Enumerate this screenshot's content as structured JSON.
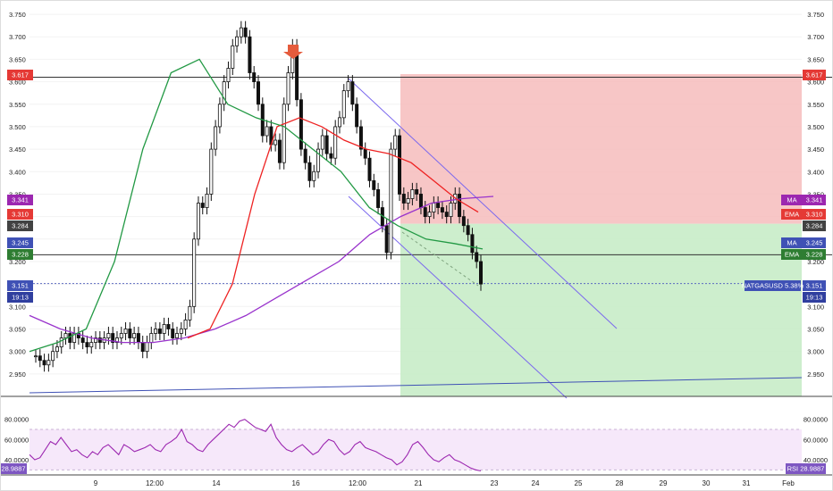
{
  "chart_data": [
    {
      "type": "candlestick",
      "symbol_label": "NATGASUSD 5.38%",
      "ylim": [
        2.9,
        3.77
      ],
      "y_ticks": [
        "3.750",
        "3.700",
        "3.650",
        "3.600",
        "3.550",
        "3.500",
        "3.450",
        "3.400",
        "3.350",
        "3.300",
        "3.250",
        "3.200",
        "3.150",
        "3.100",
        "3.050",
        "3.000",
        "2.950"
      ],
      "x_ticks": [
        "9",
        "12:00",
        "14",
        "16",
        "12:00",
        "21",
        "23",
        "24",
        "25",
        "28",
        "29",
        "30",
        "31",
        "Feb"
      ],
      "hlines": {
        "top": 3.61,
        "mid": 3.215
      },
      "risk_box": {
        "entry": 3.284,
        "stop": 3.617,
        "target": 2.9
      },
      "price_series": [
        2.99,
        2.98,
        2.97,
        2.98,
        3.0,
        3.01,
        3.03,
        3.04,
        3.02,
        3.04,
        3.03,
        3.02,
        3.01,
        3.02,
        3.03,
        3.02,
        3.03,
        3.04,
        3.02,
        3.03,
        3.04,
        3.05,
        3.03,
        3.04,
        3.02,
        3.0,
        3.02,
        3.04,
        3.05,
        3.04,
        3.06,
        3.05,
        3.03,
        3.04,
        3.05,
        3.07,
        3.1,
        3.25,
        3.33,
        3.32,
        3.35,
        3.45,
        3.5,
        3.55,
        3.6,
        3.63,
        3.68,
        3.7,
        3.72,
        3.7,
        3.62,
        3.6,
        3.55,
        3.48,
        3.5,
        3.46,
        3.47,
        3.42,
        3.55,
        3.62,
        3.68,
        3.56,
        3.45,
        3.42,
        3.38,
        3.4,
        3.45,
        3.48,
        3.44,
        3.43,
        3.5,
        3.52,
        3.58,
        3.6,
        3.55,
        3.5,
        3.45,
        3.43,
        3.38,
        3.36,
        3.32,
        3.28,
        3.22,
        3.45,
        3.48,
        3.35,
        3.33,
        3.34,
        3.36,
        3.35,
        3.32,
        3.3,
        3.31,
        3.33,
        3.32,
        3.31,
        3.3,
        3.33,
        3.35,
        3.3,
        3.28,
        3.26,
        3.22,
        3.2,
        3.15
      ],
      "ma_series": [
        3.08,
        3.05,
        3.03,
        3.02,
        3.02,
        3.03,
        3.05,
        3.08,
        3.12,
        3.16,
        3.2,
        3.26,
        3.3,
        3.33,
        3.34,
        3.345
      ],
      "ema_series": [
        3.03,
        3.05,
        3.15,
        3.35,
        3.5,
        3.52,
        3.5,
        3.47,
        3.45,
        3.44,
        3.42,
        3.38,
        3.34,
        3.31
      ],
      "ema_fast_series": [
        3.0,
        3.02,
        3.05,
        3.2,
        3.45,
        3.62,
        3.65,
        3.55,
        3.52,
        3.5,
        3.45,
        3.4,
        3.32,
        3.28,
        3.25,
        3.24,
        3.228
      ],
      "labels": {
        "left": [
          "3.617",
          "3.341",
          "3.310",
          "3.284",
          "3.245",
          "3.228",
          "3.151",
          "19:13"
        ],
        "right_price": [
          "3.617",
          "3.341",
          "3.310",
          "3.284",
          "3.245",
          "3.228",
          "3.151",
          "19:13"
        ],
        "right_tags": [
          "MA",
          "EMA",
          "MA",
          "EMA"
        ]
      },
      "colors": {
        "up": "#111111",
        "down": "#111111",
        "ma": "#9933cc",
        "ema": "#ee2222",
        "ema_fast": "#229944",
        "risk": "#f6bcbc",
        "reward": "#c8ecc8",
        "channel": "#7b68ee",
        "current": "#3f51b5"
      }
    },
    {
      "type": "line",
      "title": "RSI",
      "current_value": "28.9887",
      "ylim": [
        25,
        100
      ],
      "y_ticks": [
        "80.0000",
        "60.0000",
        "40.0000"
      ],
      "values": [
        45,
        40,
        42,
        50,
        58,
        55,
        62,
        55,
        48,
        50,
        45,
        42,
        48,
        45,
        52,
        55,
        50,
        45,
        55,
        52,
        48,
        50,
        52,
        55,
        50,
        48,
        55,
        58,
        62,
        70,
        58,
        55,
        50,
        48,
        55,
        60,
        65,
        70,
        75,
        72,
        78,
        80,
        76,
        72,
        70,
        68,
        75,
        62,
        55,
        50,
        48,
        52,
        55,
        50,
        45,
        48,
        55,
        60,
        58,
        50,
        45,
        48,
        55,
        58,
        52,
        50,
        48,
        45,
        42,
        40,
        35,
        38,
        45,
        55,
        58,
        52,
        45,
        40,
        38,
        42,
        45,
        40,
        38,
        35,
        32,
        30,
        28.99
      ],
      "colors": {
        "line": "#9c27b0",
        "band": "#f3e5f5"
      }
    }
  ]
}
